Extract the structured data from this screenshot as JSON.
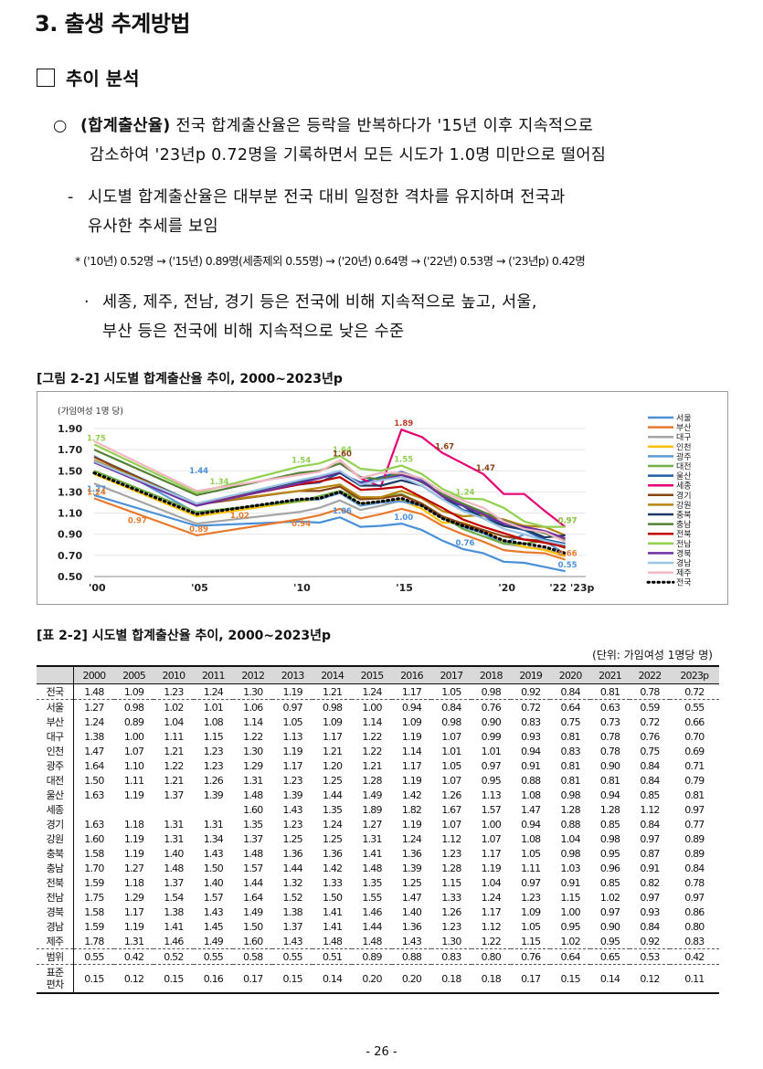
{
  "section_title": "3. 출생 추계방법",
  "subheading": "추이 분석",
  "bullet1": {
    "marker": "○",
    "bold": "(합계출산율)",
    "line1": " 전국 합계출산율은 등락을 반복하다가 '15년 이후 지속적으로",
    "line2": "감소하여 '23년p 0.72명을 기록하면서 모든 시도가 1.0명 미만으로 떨어짐"
  },
  "dash1": {
    "marker": "-",
    "line1": "시도별 합계출산율은 대부분 전국 대비 일정한 격차를 유지하며 전국과",
    "line2": "유사한 추세를 보임"
  },
  "star_note": "* ('10년) 0.52명 → ('15년) 0.89명(세종제외 0.55명) → ('20년) 0.64명 → ('22년) 0.53명 → ('23년p) 0.42명",
  "dot1": {
    "marker": "·",
    "line1": "세종, 제주, 전남, 경기 등은 전국에 비해 지속적으로 높고, 서울,",
    "line2": "부산 등은 전국에 비해 지속적으로 낮은 수준"
  },
  "figure_caption": "[그림 2-2] 시도별 합계출산율 추이, 2000~2023년p",
  "table_caption": "[표 2-2] 시도별 합계출산율 추이, 2000~2023년p",
  "unit_note": "(단위: 가임여성 1명당 명)",
  "chart_data": {
    "type": "line",
    "ylabel": "(가임여성 1명 당)",
    "ylim": [
      0.5,
      1.9
    ],
    "yticks": [
      "1.90",
      "1.70",
      "1.50",
      "1.30",
      "1.10",
      "0.90",
      "0.70",
      "0.50"
    ],
    "xticks": [
      "'00",
      "'05",
      "'10",
      "'15",
      "'20",
      "'22 '23p"
    ],
    "x": [
      2000,
      2005,
      2010,
      2011,
      2012,
      2013,
      2014,
      2015,
      2016,
      2017,
      2018,
      2019,
      2020,
      2021,
      2022,
      2023
    ],
    "legend_position": "right",
    "series": [
      {
        "name": "서울",
        "color": "#4a90d9",
        "values": [
          1.27,
          0.98,
          1.02,
          1.01,
          1.06,
          0.97,
          0.98,
          1.0,
          0.94,
          0.84,
          0.76,
          0.72,
          0.64,
          0.63,
          0.59,
          0.55
        ]
      },
      {
        "name": "부산",
        "color": "#e87a2e",
        "values": [
          1.24,
          0.89,
          1.04,
          1.08,
          1.14,
          1.05,
          1.09,
          1.14,
          1.09,
          0.98,
          0.9,
          0.83,
          0.75,
          0.73,
          0.72,
          0.66
        ]
      },
      {
        "name": "대구",
        "color": "#a5a5a5",
        "values": [
          1.38,
          1.0,
          1.11,
          1.15,
          1.22,
          1.13,
          1.17,
          1.22,
          1.19,
          1.07,
          0.99,
          0.93,
          0.81,
          0.78,
          0.76,
          0.7
        ]
      },
      {
        "name": "인천",
        "color": "#ffc000",
        "values": [
          1.47,
          1.07,
          1.21,
          1.23,
          1.3,
          1.19,
          1.21,
          1.22,
          1.14,
          1.01,
          1.01,
          0.94,
          0.83,
          0.78,
          0.75,
          0.69
        ]
      },
      {
        "name": "광주",
        "color": "#5b9bd5",
        "values": [
          1.64,
          1.1,
          1.22,
          1.23,
          1.29,
          1.17,
          1.2,
          1.21,
          1.17,
          1.05,
          0.97,
          0.91,
          0.81,
          0.9,
          0.84,
          0.71
        ]
      },
      {
        "name": "대전",
        "color": "#70ad47",
        "values": [
          1.5,
          1.11,
          1.21,
          1.26,
          1.31,
          1.23,
          1.25,
          1.28,
          1.19,
          1.07,
          0.95,
          0.88,
          0.81,
          0.81,
          0.84,
          0.79
        ]
      },
      {
        "name": "울산",
        "color": "#1f5fa8",
        "values": [
          1.63,
          1.19,
          1.37,
          1.39,
          1.48,
          1.39,
          1.44,
          1.49,
          1.42,
          1.26,
          1.13,
          1.08,
          0.98,
          0.94,
          0.85,
          0.81
        ]
      },
      {
        "name": "세종",
        "color": "#e60073",
        "values": [
          null,
          null,
          null,
          null,
          1.6,
          1.43,
          1.35,
          1.89,
          1.82,
          1.67,
          1.57,
          1.47,
          1.28,
          1.28,
          1.12,
          0.97
        ]
      },
      {
        "name": "경기",
        "color": "#8b4513",
        "values": [
          1.63,
          1.18,
          1.31,
          1.31,
          1.35,
          1.23,
          1.24,
          1.27,
          1.19,
          1.07,
          1.0,
          0.94,
          0.88,
          0.85,
          0.84,
          0.77
        ]
      },
      {
        "name": "강원",
        "color": "#b8860b",
        "values": [
          1.6,
          1.19,
          1.31,
          1.34,
          1.37,
          1.25,
          1.25,
          1.31,
          1.24,
          1.12,
          1.07,
          1.08,
          1.04,
          0.98,
          0.97,
          0.89
        ]
      },
      {
        "name": "충북",
        "color": "#1f3864",
        "values": [
          1.58,
          1.19,
          1.4,
          1.43,
          1.48,
          1.36,
          1.36,
          1.41,
          1.36,
          1.23,
          1.17,
          1.05,
          0.98,
          0.95,
          0.87,
          0.89
        ]
      },
      {
        "name": "충남",
        "color": "#548235",
        "values": [
          1.7,
          1.27,
          1.48,
          1.5,
          1.57,
          1.44,
          1.42,
          1.48,
          1.39,
          1.28,
          1.19,
          1.11,
          1.03,
          0.96,
          0.91,
          0.84
        ]
      },
      {
        "name": "전북",
        "color": "#c00000",
        "values": [
          1.59,
          1.18,
          1.37,
          1.4,
          1.44,
          1.32,
          1.33,
          1.35,
          1.25,
          1.15,
          1.04,
          0.97,
          0.91,
          0.85,
          0.82,
          0.78
        ]
      },
      {
        "name": "전남",
        "color": "#92d050",
        "values": [
          1.75,
          1.29,
          1.54,
          1.57,
          1.64,
          1.52,
          1.5,
          1.55,
          1.47,
          1.33,
          1.24,
          1.23,
          1.15,
          1.02,
          0.97,
          0.97
        ]
      },
      {
        "name": "경북",
        "color": "#7030a0",
        "values": [
          1.58,
          1.17,
          1.38,
          1.43,
          1.49,
          1.38,
          1.41,
          1.46,
          1.4,
          1.26,
          1.17,
          1.09,
          1.0,
          0.97,
          0.93,
          0.86
        ]
      },
      {
        "name": "경남",
        "color": "#9dc3e6",
        "values": [
          1.59,
          1.19,
          1.41,
          1.45,
          1.5,
          1.37,
          1.41,
          1.44,
          1.36,
          1.23,
          1.12,
          1.05,
          0.95,
          0.9,
          0.84,
          0.8
        ]
      },
      {
        "name": "제주",
        "color": "#f4b6c2",
        "values": [
          1.78,
          1.31,
          1.46,
          1.49,
          1.6,
          1.43,
          1.48,
          1.48,
          1.43,
          1.3,
          1.22,
          1.15,
          1.02,
          0.95,
          0.92,
          0.83
        ]
      },
      {
        "name": "전국",
        "color": "#000000",
        "dotted": true,
        "values": [
          1.48,
          1.09,
          1.23,
          1.24,
          1.3,
          1.19,
          1.21,
          1.24,
          1.17,
          1.05,
          0.98,
          0.92,
          0.84,
          0.81,
          0.78,
          0.72
        ]
      }
    ],
    "annotations": [
      {
        "text": "1.75",
        "x": 2000,
        "y": 1.75,
        "color": "#92d050"
      },
      {
        "text": "1.44",
        "x": 2005,
        "y": 1.44,
        "color": "#4a90d9"
      },
      {
        "text": "1.34",
        "x": 2006,
        "y": 1.34,
        "color": "#92d050"
      },
      {
        "text": "1.54",
        "x": 2010,
        "y": 1.54,
        "color": "#92d050"
      },
      {
        "text": "1.64",
        "x": 2012,
        "y": 1.64,
        "color": "#92d050"
      },
      {
        "text": "1.60",
        "x": 2012,
        "y": 1.6,
        "color": "#8b4513"
      },
      {
        "text": "1.89",
        "x": 2015,
        "y": 1.89,
        "color": "#c0392b"
      },
      {
        "text": "1.55",
        "x": 2015,
        "y": 1.55,
        "color": "#92d050"
      },
      {
        "text": "1.67",
        "x": 2017,
        "y": 1.67,
        "color": "#8b4513"
      },
      {
        "text": "1.47",
        "x": 2019,
        "y": 1.47,
        "color": "#8b4513"
      },
      {
        "text": "1.24",
        "x": 2018,
        "y": 1.24,
        "color": "#92d050"
      },
      {
        "text": "1.27",
        "x": 2000,
        "y": 1.27,
        "color": "#4a90d9"
      },
      {
        "text": "1.24",
        "x": 2000,
        "y": 1.24,
        "color": "#e87a2e"
      },
      {
        "text": "0.97",
        "x": 2002,
        "y": 0.97,
        "color": "#e87a2e"
      },
      {
        "text": "0.89",
        "x": 2005,
        "y": 0.89,
        "color": "#e87a2e"
      },
      {
        "text": "1.02",
        "x": 2007,
        "y": 1.02,
        "color": "#e87a2e"
      },
      {
        "text": "0.94",
        "x": 2010,
        "y": 0.94,
        "color": "#e87a2e"
      },
      {
        "text": "1.06",
        "x": 2012,
        "y": 1.06,
        "color": "#4a90d9"
      },
      {
        "text": "1.00",
        "x": 2015,
        "y": 1.0,
        "color": "#4a90d9"
      },
      {
        "text": "0.76",
        "x": 2018,
        "y": 0.76,
        "color": "#4a90d9"
      },
      {
        "text": "0.97",
        "x": 2023,
        "y": 0.97,
        "color": "#8b4513"
      },
      {
        "text": "0.97",
        "x": 2023,
        "y": 0.97,
        "color": "#92d050"
      },
      {
        "text": "0.66",
        "x": 2023,
        "y": 0.66,
        "color": "#e87a2e"
      },
      {
        "text": "0.55",
        "x": 2023,
        "y": 0.55,
        "color": "#4a90d9"
      }
    ]
  },
  "table": {
    "header_years": [
      "2000",
      "2005",
      "2010",
      "2011",
      "2012",
      "2013",
      "2014",
      "2015",
      "2016",
      "2017",
      "2018",
      "2019",
      "2020",
      "2021",
      "2022",
      "2023p"
    ],
    "rows": [
      {
        "name": "전국",
        "values": [
          "1.48",
          "1.09",
          "1.23",
          "1.24",
          "1.30",
          "1.19",
          "1.21",
          "1.24",
          "1.17",
          "1.05",
          "0.98",
          "0.92",
          "0.84",
          "0.81",
          "0.78",
          "0.72"
        ]
      },
      {
        "name": "서울",
        "values": [
          "1.27",
          "0.98",
          "1.02",
          "1.01",
          "1.06",
          "0.97",
          "0.98",
          "1.00",
          "0.94",
          "0.84",
          "0.76",
          "0.72",
          "0.64",
          "0.63",
          "0.59",
          "0.55"
        ]
      },
      {
        "name": "부산",
        "values": [
          "1.24",
          "0.89",
          "1.04",
          "1.08",
          "1.14",
          "1.05",
          "1.09",
          "1.14",
          "1.09",
          "0.98",
          "0.90",
          "0.83",
          "0.75",
          "0.73",
          "0.72",
          "0.66"
        ]
      },
      {
        "name": "대구",
        "values": [
          "1.38",
          "1.00",
          "1.11",
          "1.15",
          "1.22",
          "1.13",
          "1.17",
          "1.22",
          "1.19",
          "1.07",
          "0.99",
          "0.93",
          "0.81",
          "0.78",
          "0.76",
          "0.70"
        ]
      },
      {
        "name": "인천",
        "values": [
          "1.47",
          "1.07",
          "1.21",
          "1.23",
          "1.30",
          "1.19",
          "1.21",
          "1.22",
          "1.14",
          "1.01",
          "1.01",
          "0.94",
          "0.83",
          "0.78",
          "0.75",
          "0.69"
        ]
      },
      {
        "name": "광주",
        "values": [
          "1.64",
          "1.10",
          "1.22",
          "1.23",
          "1.29",
          "1.17",
          "1.20",
          "1.21",
          "1.17",
          "1.05",
          "0.97",
          "0.91",
          "0.81",
          "0.90",
          "0.84",
          "0.71"
        ]
      },
      {
        "name": "대전",
        "values": [
          "1.50",
          "1.11",
          "1.21",
          "1.26",
          "1.31",
          "1.23",
          "1.25",
          "1.28",
          "1.19",
          "1.07",
          "0.95",
          "0.88",
          "0.81",
          "0.81",
          "0.84",
          "0.79"
        ]
      },
      {
        "name": "울산",
        "values": [
          "1.63",
          "1.19",
          "1.37",
          "1.39",
          "1.48",
          "1.39",
          "1.44",
          "1.49",
          "1.42",
          "1.26",
          "1.13",
          "1.08",
          "0.98",
          "0.94",
          "0.85",
          "0.81"
        ]
      },
      {
        "name": "세종",
        "values": [
          "",
          "",
          "",
          "",
          "1.60",
          "1.43",
          "1.35",
          "1.89",
          "1.82",
          "1.67",
          "1.57",
          "1.47",
          "1.28",
          "1.28",
          "1.12",
          "0.97"
        ]
      },
      {
        "name": "경기",
        "values": [
          "1.63",
          "1.18",
          "1.31",
          "1.31",
          "1.35",
          "1.23",
          "1.24",
          "1.27",
          "1.19",
          "1.07",
          "1.00",
          "0.94",
          "0.88",
          "0.85",
          "0.84",
          "0.77"
        ]
      },
      {
        "name": "강원",
        "values": [
          "1.60",
          "1.19",
          "1.31",
          "1.34",
          "1.37",
          "1.25",
          "1.25",
          "1.31",
          "1.24",
          "1.12",
          "1.07",
          "1.08",
          "1.04",
          "0.98",
          "0.97",
          "0.89"
        ]
      },
      {
        "name": "충북",
        "values": [
          "1.58",
          "1.19",
          "1.40",
          "1.43",
          "1.48",
          "1.36",
          "1.36",
          "1.41",
          "1.36",
          "1.23",
          "1.17",
          "1.05",
          "0.98",
          "0.95",
          "0.87",
          "0.89"
        ]
      },
      {
        "name": "충남",
        "values": [
          "1.70",
          "1.27",
          "1.48",
          "1.50",
          "1.57",
          "1.44",
          "1.42",
          "1.48",
          "1.39",
          "1.28",
          "1.19",
          "1.11",
          "1.03",
          "0.96",
          "0.91",
          "0.84"
        ]
      },
      {
        "name": "전북",
        "values": [
          "1.59",
          "1.18",
          "1.37",
          "1.40",
          "1.44",
          "1.32",
          "1.33",
          "1.35",
          "1.25",
          "1.15",
          "1.04",
          "0.97",
          "0.91",
          "0.85",
          "0.82",
          "0.78"
        ]
      },
      {
        "name": "전남",
        "values": [
          "1.75",
          "1.29",
          "1.54",
          "1.57",
          "1.64",
          "1.52",
          "1.50",
          "1.55",
          "1.47",
          "1.33",
          "1.24",
          "1.23",
          "1.15",
          "1.02",
          "0.97",
          "0.97"
        ]
      },
      {
        "name": "경북",
        "values": [
          "1.58",
          "1.17",
          "1.38",
          "1.43",
          "1.49",
          "1.38",
          "1.41",
          "1.46",
          "1.40",
          "1.26",
          "1.17",
          "1.09",
          "1.00",
          "0.97",
          "0.93",
          "0.86"
        ]
      },
      {
        "name": "경남",
        "values": [
          "1.59",
          "1.19",
          "1.41",
          "1.45",
          "1.50",
          "1.37",
          "1.41",
          "1.44",
          "1.36",
          "1.23",
          "1.12",
          "1.05",
          "0.95",
          "0.90",
          "0.84",
          "0.80"
        ]
      },
      {
        "name": "제주",
        "values": [
          "1.78",
          "1.31",
          "1.46",
          "1.49",
          "1.60",
          "1.43",
          "1.48",
          "1.48",
          "1.43",
          "1.30",
          "1.22",
          "1.15",
          "1.02",
          "0.95",
          "0.92",
          "0.83"
        ]
      },
      {
        "name": "범위",
        "values": [
          "0.55",
          "0.42",
          "0.52",
          "0.55",
          "0.58",
          "0.55",
          "0.51",
          "0.89",
          "0.88",
          "0.83",
          "0.80",
          "0.76",
          "0.64",
          "0.65",
          "0.53",
          "0.42"
        ]
      },
      {
        "name": "표준\n편차",
        "values": [
          "0.15",
          "0.12",
          "0.15",
          "0.16",
          "0.17",
          "0.15",
          "0.14",
          "0.20",
          "0.20",
          "0.18",
          "0.18",
          "0.17",
          "0.15",
          "0.14",
          "0.12",
          "0.11"
        ]
      }
    ]
  },
  "page_number": "- 26 -"
}
